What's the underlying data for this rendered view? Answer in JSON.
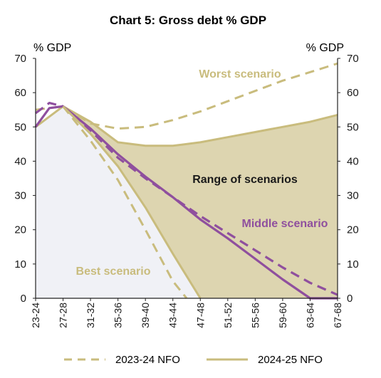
{
  "chart_data": {
    "type": "line",
    "title": "Chart 5: Gross debt % GDP",
    "ylabel_left": "% GDP",
    "ylabel_right": "% GDP",
    "ylim": [
      0,
      70
    ],
    "yticks": [
      0,
      10,
      20,
      30,
      40,
      50,
      60,
      70
    ],
    "x_tick_labels": [
      "23-24",
      "27-28",
      "31-32",
      "35-36",
      "39-40",
      "43-44",
      "47-48",
      "51-52",
      "55-56",
      "59-60",
      "63-64",
      "67-68"
    ],
    "annotations": {
      "worst": "Worst scenario",
      "range": "Range of scenarios",
      "middle": "Middle scenario",
      "best": "Best scenario"
    },
    "legend": [
      {
        "label": "2023-24 NFO",
        "style": "dashed"
      },
      {
        "label": "2024-25 NFO",
        "style": "solid"
      }
    ],
    "colors": {
      "band_fill": "#ddd5b0",
      "best_fill": "#f0f1f6",
      "middle_line": "#8f4f9e",
      "khaki_line": "#c9bc7d",
      "axis": "#222222"
    },
    "series": [
      {
        "name": "Worst scenario",
        "vintage": "2023-24 NFO",
        "style": "dashed",
        "x": [
          "23-24",
          "27-28",
          "31-32",
          "35-36",
          "39-40",
          "43-44",
          "47-48",
          "51-52",
          "55-56",
          "59-60",
          "63-64",
          "67-68"
        ],
        "values": [
          55,
          56,
          51,
          49.5,
          50,
          52,
          54.5,
          57.5,
          60.5,
          63.5,
          66,
          68.5
        ]
      },
      {
        "name": "Worst scenario",
        "vintage": "2024-25 NFO",
        "style": "solid",
        "x": [
          "23-24",
          "27-28",
          "31-32",
          "35-36",
          "39-40",
          "43-44",
          "47-48",
          "51-52",
          "55-56",
          "59-60",
          "63-64",
          "67-68"
        ],
        "values": [
          50,
          56,
          51.5,
          45.5,
          44.5,
          44.5,
          45.5,
          47,
          48.5,
          50,
          51.5,
          53.5
        ]
      },
      {
        "name": "Middle scenario",
        "vintage": "2023-24 NFO",
        "style": "dashed",
        "x": [
          "23-24",
          "25-26",
          "27-28",
          "31-32",
          "35-36",
          "39-40",
          "43-44",
          "47-48",
          "51-52",
          "55-56",
          "59-60",
          "63-64",
          "67-68"
        ],
        "values": [
          54,
          57,
          56,
          49,
          41,
          35,
          29.5,
          24,
          19,
          14,
          9,
          4.5,
          1
        ]
      },
      {
        "name": "Middle scenario",
        "vintage": "2024-25 NFO",
        "style": "solid",
        "x": [
          "23-24",
          "25-26",
          "27-28",
          "31-32",
          "35-36",
          "39-40",
          "43-44",
          "47-48",
          "51-52",
          "55-56",
          "59-60",
          "63-64",
          "67-68"
        ],
        "values": [
          50,
          55.5,
          56,
          49.5,
          42,
          35.5,
          29.5,
          23,
          17.5,
          11.5,
          5.5,
          0,
          0
        ]
      },
      {
        "name": "Best scenario",
        "vintage": "2023-24 NFO",
        "style": "dashed",
        "x": [
          "27-28",
          "31-32",
          "35-36",
          "39-40",
          "43-44",
          "45-46"
        ],
        "values": [
          56,
          46,
          34.5,
          20,
          5,
          0
        ]
      },
      {
        "name": "Best scenario",
        "vintage": "2024-25 NFO",
        "style": "solid",
        "x": [
          "27-28",
          "31-32",
          "35-36",
          "39-40",
          "43-44",
          "47-48"
        ],
        "values": [
          56,
          48,
          38.5,
          26.5,
          13,
          0
        ]
      }
    ]
  }
}
